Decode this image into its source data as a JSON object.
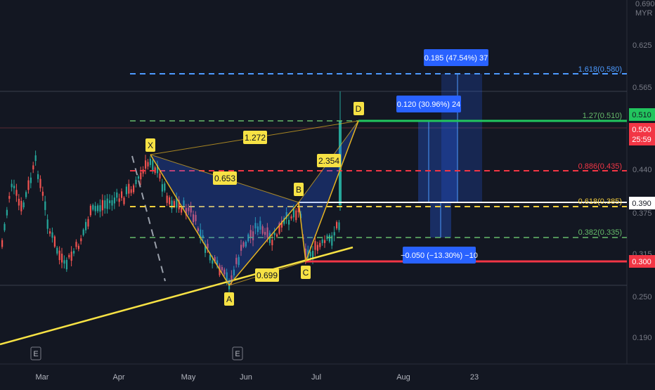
{
  "currency": "MYR",
  "price_axis": {
    "ticks": [
      "0.690",
      "0.625",
      "0.565",
      "0.440",
      "0.375",
      "0.315",
      "0.250",
      "0.190"
    ],
    "badges": [
      {
        "label": "0.510",
        "bg": "#22c55e",
        "fg": "#131722"
      },
      {
        "label": "0.500",
        "bg": "#f23645",
        "fg": "#ffffff"
      },
      {
        "label": "25:59",
        "bg": "#f23645",
        "fg": "#ffffff"
      },
      {
        "label": "0.390",
        "bg": "#ffffff",
        "fg": "#131722"
      },
      {
        "label": "0.300",
        "bg": "#f23645",
        "fg": "#ffffff"
      }
    ]
  },
  "time_axis": {
    "labels": [
      "Mar",
      "Apr",
      "May",
      "Jun",
      "Jul",
      "Aug",
      "23"
    ]
  },
  "earnings_markers": [
    "E",
    "E"
  ],
  "pattern": {
    "points": [
      "X",
      "A",
      "B",
      "C",
      "D"
    ],
    "ratios": [
      "0.653",
      "1.272",
      "2.354",
      "0.699"
    ]
  },
  "fib_levels": [
    {
      "label": "1.618(0.580)",
      "color": "#4c9aff"
    },
    {
      "label": "1.27(0.510)",
      "color": "#66bb6a"
    },
    {
      "label": "0.886(0.435)",
      "color": "#f23645"
    },
    {
      "label": "0.618(0.385)",
      "color": "#f7d03c"
    },
    {
      "label": "0.382(0.335)",
      "color": "#66bb6a"
    }
  ],
  "measures": [
    {
      "label": "0.185 (47.54%) 37"
    },
    {
      "label": "0.120 (30.96%) 24"
    },
    {
      "label": "−0.050 (−13.30%) −10"
    }
  ],
  "colors": {
    "background": "#131722",
    "pattern_fill": "#2962ff",
    "pattern_line": "#e6b422",
    "trendline": "#f7e244",
    "candle_up": "#26a69a",
    "candle_down": "#ef5350"
  }
}
